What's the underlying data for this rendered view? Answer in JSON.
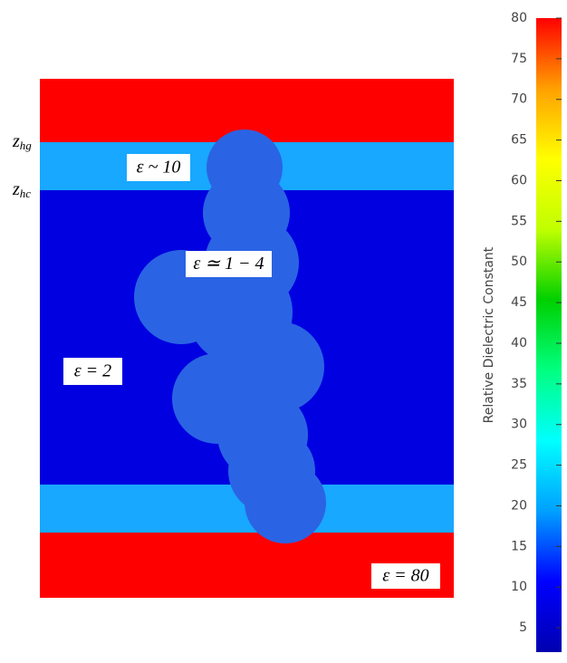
{
  "figure": {
    "labels": [
      {
        "base": "z",
        "sub": "hg"
      },
      {
        "base": "z",
        "sub": "hc"
      }
    ],
    "regions": [
      "ε ~ 10",
      "ε ≃ 1 − 4",
      "ε = 2",
      "ε = 80"
    ],
    "colorbar": {
      "label": "Relative Dielectric Constant",
      "lim": [
        2,
        80
      ],
      "ticks": [
        5,
        10,
        15,
        20,
        25,
        30,
        35,
        40,
        45,
        50,
        55,
        60,
        65,
        70,
        75,
        80
      ],
      "colors": [
        "#0000b0",
        "#0000ff",
        "#00a0ff",
        "#00ffff",
        "#00ff80",
        "#00d000",
        "#c0ff00",
        "#ffff00",
        "#ffa000",
        "#ff0000"
      ]
    }
  }
}
